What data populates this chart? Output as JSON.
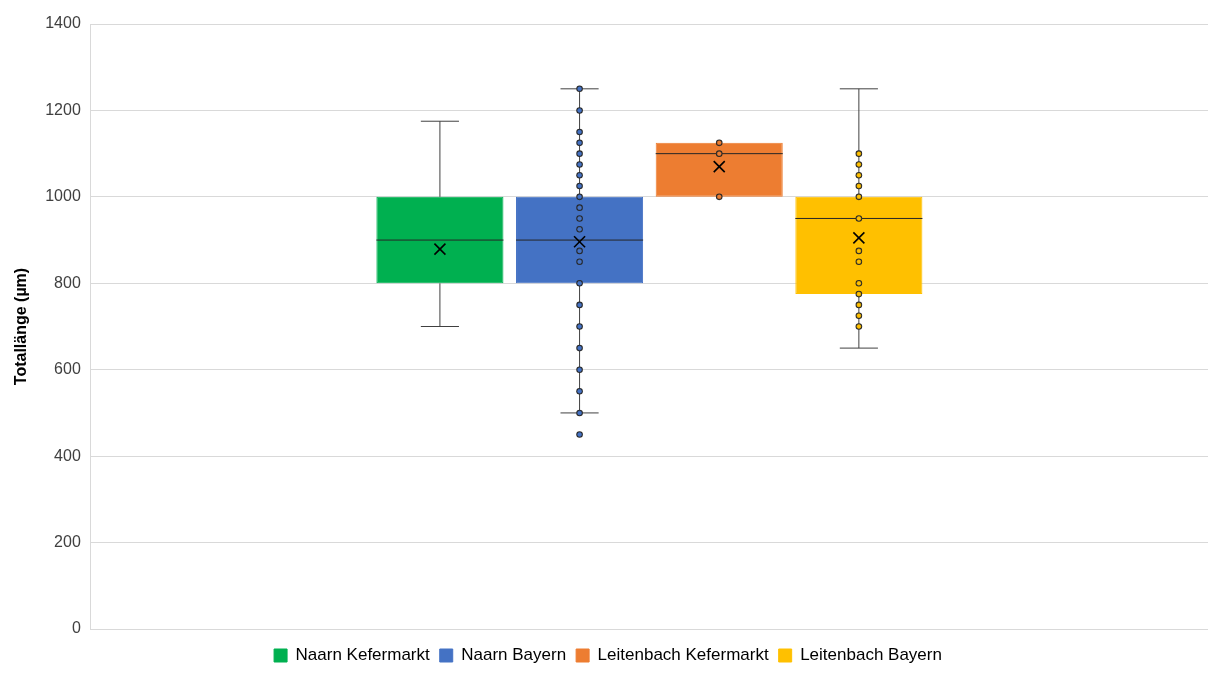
{
  "chart_data": {
    "type": "box",
    "ylabel": "Totallänge (µm)",
    "categories": [
      null
    ],
    "ylim": [
      0,
      1400
    ],
    "yticks": [
      0,
      200,
      400,
      600,
      800,
      1000,
      1200,
      1400
    ],
    "grid": "y",
    "legend": "bottom",
    "tick_labels": "y",
    "marker": "circle",
    "series": [
      {
        "name": "Naarn Kefermarkt",
        "color": "#00b050",
        "boxes": [
          {
            "low": 700,
            "q1": 800,
            "median": 900,
            "q3": 1000,
            "high": 1175,
            "mean": 879
          }
        ]
      },
      {
        "name": "Naarn Bayern",
        "color": "#4472c4",
        "boxes": [
          {
            "low": 500,
            "q1": 800,
            "median": 900,
            "q3": 1000,
            "high": 1250,
            "mean": 896,
            "outliers": [
              450
            ]
          }
        ]
      },
      {
        "type": "scatter",
        "color": "#4472c4",
        "x": [
          null,
          null,
          null,
          null,
          null,
          null,
          null,
          null,
          null,
          null,
          null,
          null,
          null,
          null,
          null,
          null,
          null,
          null,
          null,
          null,
          null
        ],
        "values": [
          500,
          550,
          600,
          650,
          700,
          750,
          800,
          850,
          875,
          925,
          950,
          975,
          1000,
          1025,
          1050,
          1075,
          1100,
          1125,
          1150,
          1200,
          1250
        ]
      },
      {
        "name": "Leitenbach Kefermarkt",
        "color": "#ed7d31",
        "boxes": [
          {
            "low": 1000,
            "q1": 1000,
            "median": 1100,
            "q3": 1125,
            "high": 1125,
            "mean": 1070
          }
        ]
      },
      {
        "type": "scatter",
        "color": "#ed7d31",
        "x": [
          null,
          null,
          null
        ],
        "values": [
          1000,
          1100,
          1125
        ]
      },
      {
        "name": "Leitenbach Bayern",
        "color": "#ffc000",
        "boxes": [
          {
            "low": 650,
            "q1": 775,
            "median": 950,
            "q3": 1000,
            "high": 1250,
            "mean": 905
          }
        ]
      },
      {
        "type": "scatter",
        "color": "#ffc000",
        "x": [
          null,
          null,
          null,
          null,
          null,
          null,
          null,
          null,
          null,
          null,
          null,
          null,
          null
        ],
        "values": [
          700,
          725,
          750,
          775,
          800,
          850,
          875,
          950,
          1000,
          1025,
          1050,
          1075,
          1100
        ]
      }
    ]
  }
}
